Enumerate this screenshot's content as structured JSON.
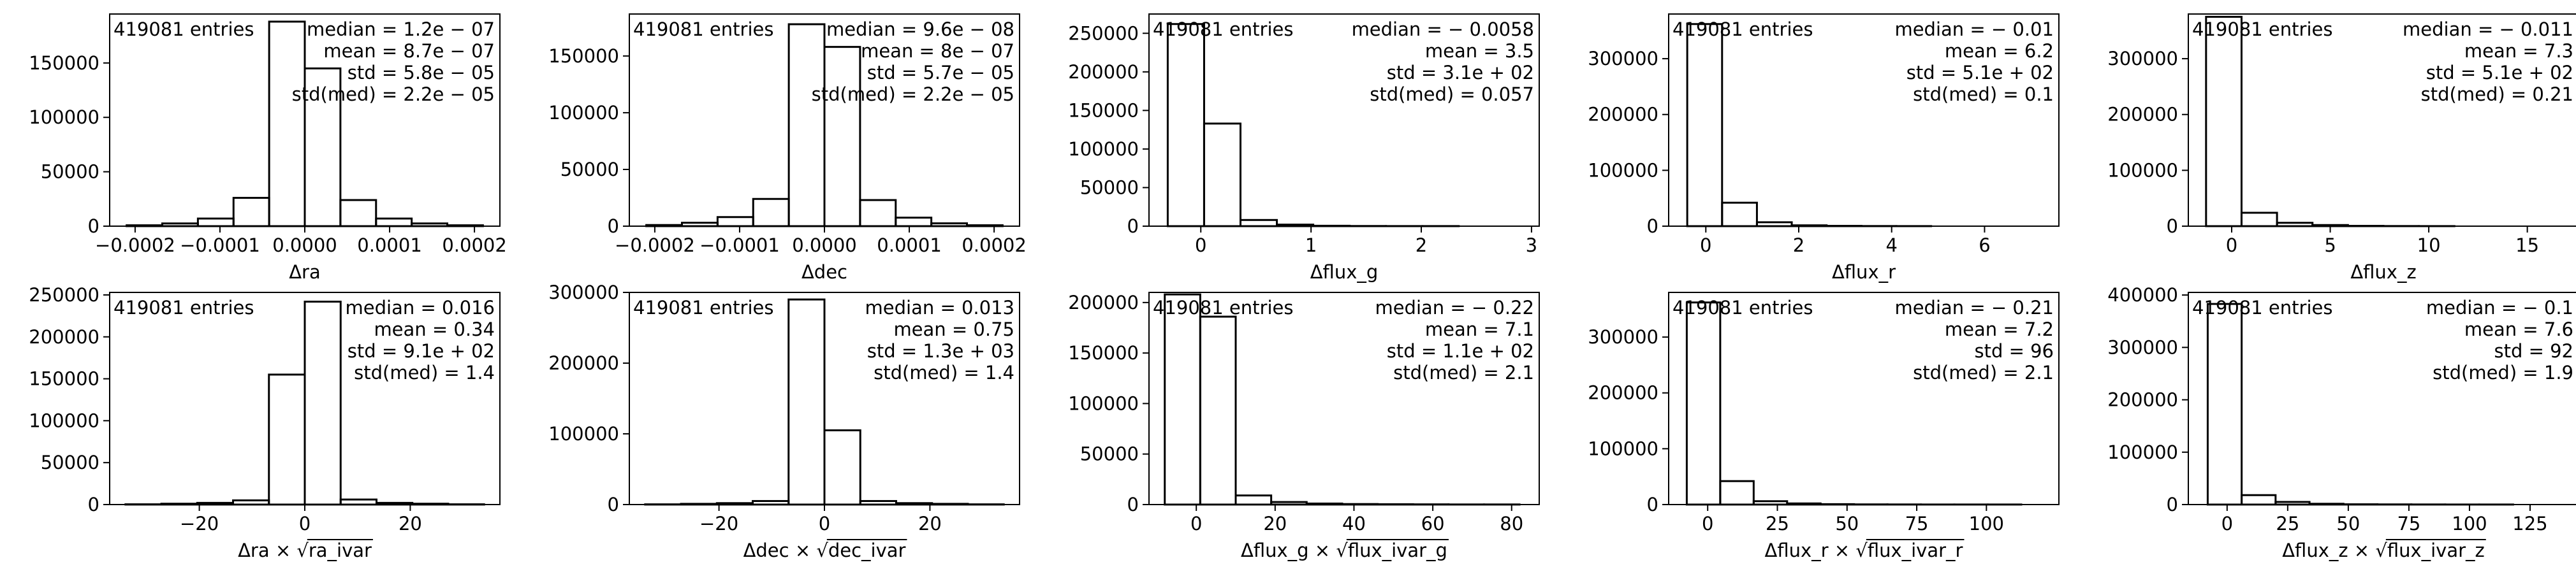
{
  "chart_data": [
    {
      "type": "histogram",
      "xlabel": "Δra",
      "xlim": [
        -0.00023,
        0.00023
      ],
      "ylim": [
        0,
        195000
      ],
      "xticks": [
        -0.0002,
        -0.0001,
        0.0,
        0.0001,
        0.0002
      ],
      "xtick_labels": [
        "−0.0002",
        "−0.0001",
        "0.0000",
        "0.0001",
        "0.0002"
      ],
      "yticks": [
        0,
        50000,
        100000,
        150000
      ],
      "ytick_labels": [
        "0",
        "50000",
        "100000",
        "150000"
      ],
      "bin_edges": [
        -0.00021,
        -0.000168,
        -0.000126,
        -8.4e-05,
        -4.2e-05,
        0.0,
        4.2e-05,
        8.4e-05,
        0.000126,
        0.000168,
        0.00021
      ],
      "counts": [
        800,
        2500,
        7000,
        26000,
        188000,
        145000,
        24000,
        7000,
        2500,
        800
      ],
      "entries_label": "419081 entries",
      "stats": [
        "median = 1.2e − 07",
        "mean = 8.7e − 07",
        "std = 5.8e − 05",
        "std(med) = 2.2e − 05"
      ]
    },
    {
      "type": "histogram",
      "xlabel": "Δdec",
      "xlim": [
        -0.00023,
        0.00023
      ],
      "ylim": [
        0,
        187000
      ],
      "xticks": [
        -0.0002,
        -0.0001,
        0.0,
        0.0001,
        0.0002
      ],
      "xtick_labels": [
        "−0.0002",
        "−0.0001",
        "0.0000",
        "0.0001",
        "0.0002"
      ],
      "yticks": [
        0,
        50000,
        100000,
        150000
      ],
      "ytick_labels": [
        "0",
        "50000",
        "100000",
        "150000"
      ],
      "bin_edges": [
        -0.00021,
        -0.000168,
        -0.000126,
        -8.4e-05,
        -4.2e-05,
        0.0,
        4.2e-05,
        8.4e-05,
        0.000126,
        0.000168,
        0.00021
      ],
      "counts": [
        1000,
        3000,
        8000,
        24000,
        178000,
        158000,
        23000,
        7500,
        2500,
        800
      ],
      "entries_label": "419081 entries",
      "stats": [
        "median = 9.6e − 08",
        "mean = 8e − 07",
        "std = 5.7e − 05",
        "std(med) = 2.2e − 05"
      ]
    },
    {
      "type": "histogram",
      "xlabel": "Δflux_g",
      "xlim": [
        -0.47,
        3.07
      ],
      "ylim": [
        0,
        275000
      ],
      "xticks": [
        0,
        1,
        2,
        3
      ],
      "xtick_labels": [
        "0",
        "1",
        "2",
        "3"
      ],
      "yticks": [
        0,
        50000,
        100000,
        150000,
        200000,
        250000
      ],
      "ytick_labels": [
        "0",
        "50000",
        "100000",
        "150000",
        "200000",
        "250000"
      ],
      "bin_edges": [
        -0.3,
        0.03,
        0.36,
        0.69,
        1.02,
        1.35,
        1.68,
        2.01,
        2.34,
        2.67,
        2.9
      ],
      "counts": [
        262000,
        133000,
        8000,
        2000,
        500,
        200,
        100,
        100,
        0,
        0
      ],
      "entries_label": "419081 entries",
      "stats": [
        "median = − 0.0058",
        "mean = 3.5",
        "std = 3.1e + 02",
        "std(med) = 0.057"
      ]
    },
    {
      "type": "histogram",
      "xlabel": "Δflux_r",
      "xlim": [
        -0.8,
        7.6
      ],
      "ylim": [
        0,
        380000
      ],
      "xticks": [
        0,
        2,
        4,
        6
      ],
      "xtick_labels": [
        "0",
        "2",
        "4",
        "6"
      ],
      "yticks": [
        0,
        100000,
        200000,
        300000
      ],
      "ytick_labels": [
        "0",
        "100000",
        "200000",
        "300000"
      ],
      "bin_edges": [
        -0.4,
        0.35,
        1.1,
        1.85,
        2.6,
        3.35,
        4.1,
        4.85,
        5.6,
        6.35,
        7.1
      ],
      "counts": [
        362000,
        42000,
        7000,
        1500,
        500,
        200,
        100,
        0,
        0,
        0
      ],
      "entries_label": "419081 entries",
      "stats": [
        "median = − 0.01",
        "mean = 6.2",
        "std = 5.1e + 02",
        "std(med) = 0.1"
      ]
    },
    {
      "type": "histogram",
      "xlabel": "Δflux_z",
      "xlim": [
        -2.2,
        17.6
      ],
      "ylim": [
        0,
        380000
      ],
      "xticks": [
        0,
        5,
        10,
        15
      ],
      "xtick_labels": [
        "0",
        "5",
        "10",
        "15"
      ],
      "yticks": [
        0,
        100000,
        200000,
        300000
      ],
      "ytick_labels": [
        "0",
        "100000",
        "200000",
        "300000"
      ],
      "bin_edges": [
        -1.3,
        0.5,
        2.3,
        4.1,
        5.9,
        7.7,
        9.5,
        11.3,
        13.1,
        14.9,
        16.7
      ],
      "counts": [
        375000,
        24000,
        6000,
        2000,
        500,
        200,
        100,
        0,
        0,
        0
      ],
      "entries_label": "419081 entries",
      "stats": [
        "median = − 0.011",
        "mean = 7.3",
        "std = 5.1e + 02",
        "std(med) = 0.21"
      ]
    },
    {
      "type": "histogram",
      "xlabel": "Δra × √ra_ivar",
      "xlabel_parts": [
        "Δra ×",
        "ra_ivar"
      ],
      "xlim": [
        -37,
        37
      ],
      "ylim": [
        0,
        253000
      ],
      "xticks": [
        -20,
        0,
        20
      ],
      "xtick_labels": [
        "−20",
        "0",
        "20"
      ],
      "yticks": [
        0,
        50000,
        100000,
        150000,
        200000,
        250000
      ],
      "ytick_labels": [
        "0",
        "50000",
        "100000",
        "150000",
        "200000",
        "250000"
      ],
      "bin_edges": [
        -34,
        -27.2,
        -20.4,
        -13.6,
        -6.8,
        0,
        6.8,
        13.6,
        20.4,
        27.2,
        34
      ],
      "counts": [
        300,
        1000,
        2000,
        5000,
        155000,
        242000,
        6000,
        2000,
        1000,
        300
      ],
      "entries_label": "419081 entries",
      "stats": [
        "median = 0.016",
        "mean = 0.34",
        "std = 9.1e + 02",
        "std(med) = 1.4"
      ]
    },
    {
      "type": "histogram",
      "xlabel": "Δdec × √dec_ivar",
      "xlabel_parts": [
        "Δdec ×",
        "dec_ivar"
      ],
      "xlim": [
        -37,
        37
      ],
      "ylim": [
        0,
        300000
      ],
      "xticks": [
        -20,
        0,
        20
      ],
      "xtick_labels": [
        "−20",
        "0",
        "20"
      ],
      "yticks": [
        0,
        100000,
        200000,
        300000
      ],
      "ytick_labels": [
        "0",
        "100000",
        "200000",
        "300000"
      ],
      "bin_edges": [
        -34,
        -27.2,
        -20.4,
        -13.6,
        -6.8,
        0,
        6.8,
        13.6,
        20.4,
        27.2,
        34
      ],
      "counts": [
        300,
        1000,
        2000,
        5000,
        290000,
        105000,
        5000,
        2000,
        1000,
        300
      ],
      "entries_label": "419081 entries",
      "stats": [
        "median = 0.013",
        "mean = 0.75",
        "std = 1.3e + 03",
        "std(med) = 1.4"
      ]
    },
    {
      "type": "histogram",
      "xlabel": "Δflux_g × √flux_ivar_g",
      "xlabel_parts": [
        "Δflux_g ×",
        "flux_ivar_g"
      ],
      "xlim": [
        -12,
        87
      ],
      "ylim": [
        0,
        210000
      ],
      "xticks": [
        0,
        20,
        40,
        60,
        80
      ],
      "xtick_labels": [
        "0",
        "20",
        "40",
        "60",
        "80"
      ],
      "yticks": [
        0,
        50000,
        100000,
        150000,
        200000
      ],
      "ytick_labels": [
        "0",
        "50000",
        "100000",
        "150000",
        "200000"
      ],
      "bin_edges": [
        -8,
        1,
        10,
        19,
        28,
        37,
        46,
        55,
        64,
        73,
        82
      ],
      "counts": [
        208000,
        186000,
        9000,
        2500,
        1000,
        500,
        300,
        200,
        100,
        100
      ],
      "entries_label": "419081 entries",
      "stats": [
        "median = − 0.22",
        "mean = 7.1",
        "std = 1.1e + 02",
        "std(med) = 2.1"
      ]
    },
    {
      "type": "histogram",
      "xlabel": "Δflux_r × √flux_ivar_r",
      "xlabel_parts": [
        "Δflux_r ×",
        "flux_ivar_r"
      ],
      "xlim": [
        -14,
        126
      ],
      "ylim": [
        0,
        380000
      ],
      "xticks": [
        0,
        25,
        50,
        75,
        100
      ],
      "xtick_labels": [
        "0",
        "25",
        "50",
        "75",
        "100"
      ],
      "yticks": [
        0,
        100000,
        200000,
        300000
      ],
      "ytick_labels": [
        "0",
        "100000",
        "200000",
        "300000"
      ],
      "bin_edges": [
        -7.5,
        4.5,
        16.5,
        28.5,
        40.5,
        52.5,
        64.5,
        76.5,
        88.5,
        100.5,
        112.5,
        120
      ],
      "counts": [
        362000,
        42000,
        6000,
        2000,
        700,
        300,
        200,
        100,
        100,
        100,
        0
      ],
      "entries_label": "419081 entries",
      "stats": [
        "median = − 0.21",
        "mean = 7.2",
        "std = 96",
        "std(med) = 2.1"
      ]
    },
    {
      "type": "histogram",
      "xlabel": "Δflux_z × √flux_ivar_z",
      "xlabel_parts": [
        "Δflux_z ×",
        "flux_ivar_z"
      ],
      "xlim": [
        -16,
        145
      ],
      "ylim": [
        0,
        405000
      ],
      "xticks": [
        0,
        25,
        50,
        75,
        100,
        125
      ],
      "xtick_labels": [
        "0",
        "25",
        "50",
        "75",
        "100",
        "125"
      ],
      "yticks": [
        0,
        100000,
        200000,
        300000,
        400000
      ],
      "ytick_labels": [
        "0",
        "100000",
        "200000",
        "300000",
        "400000"
      ],
      "bin_edges": [
        -8,
        6,
        20,
        34,
        48,
        62,
        76,
        90,
        104,
        118,
        132,
        137
      ],
      "counts": [
        383000,
        18000,
        5000,
        1500,
        500,
        300,
        200,
        100,
        100,
        0,
        0
      ],
      "entries_label": "419081 entries",
      "stats": [
        "median = − 0.1",
        "mean = 7.6",
        "std = 92",
        "std(med) = 1.9"
      ]
    }
  ]
}
